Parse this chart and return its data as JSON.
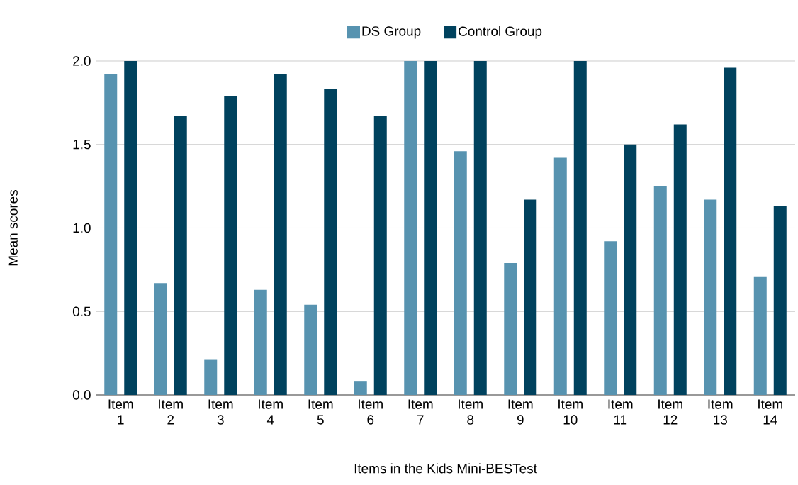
{
  "chart_data": {
    "type": "bar",
    "xlabel": "Items in the Kids Mini-BESTest",
    "ylabel": "Mean scores",
    "categories": [
      "Item 1",
      "Item 2",
      "Item 3",
      "Item 4",
      "Item 5",
      "Item 6",
      "Item 7",
      "Item 8",
      "Item 9",
      "Item 10",
      "Item 11",
      "Item 12",
      "Item 13",
      "Item 14"
    ],
    "series": [
      {
        "name": "DS Group",
        "color": "#5793b0",
        "values": [
          1.92,
          0.67,
          0.21,
          0.63,
          0.54,
          0.08,
          2.0,
          1.46,
          0.79,
          1.42,
          0.92,
          1.25,
          1.17,
          0.71
        ]
      },
      {
        "name": "Control Group",
        "color": "#00425e",
        "values": [
          2.0,
          1.67,
          1.79,
          1.92,
          1.83,
          1.67,
          2.0,
          2.0,
          1.17,
          2.0,
          1.5,
          1.62,
          1.96,
          1.13
        ]
      }
    ],
    "ylim": [
      0,
      2.0
    ],
    "yticks": [
      {
        "value": 0,
        "label": "0.0"
      },
      0.5,
      {
        "value": 1.0,
        "label": "1.0"
      },
      1.5,
      {
        "value": 2.0,
        "label": "2.0"
      }
    ],
    "grid": "y",
    "legend": "top"
  }
}
